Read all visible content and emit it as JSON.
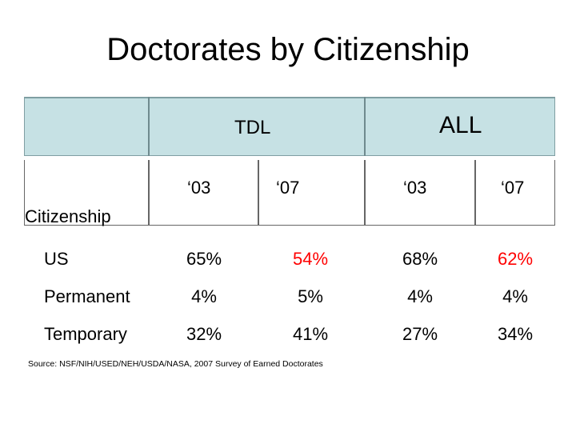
{
  "title": "Doctorates by Citizenship",
  "groups": {
    "tdl": "TDL",
    "all": "ALL"
  },
  "years": {
    "tdl_03": "‘03",
    "tdl_07": "‘07",
    "all_03": "‘03",
    "all_07": "‘07"
  },
  "row_header": "Citizenship",
  "rows": [
    {
      "label": "US",
      "tdl_03": "65%",
      "tdl_07": "54%",
      "all_03": "68%",
      "all_07": "62%"
    },
    {
      "label": "Permanent",
      "tdl_03": "4%",
      "tdl_07": "5%",
      "all_03": "4%",
      "all_07": "4%"
    },
    {
      "label": "Temporary",
      "tdl_03": "32%",
      "tdl_07": "41%",
      "all_03": "27%",
      "all_07": "34%"
    }
  ],
  "highlight_color": "#ff0000",
  "source": "Source: NSF/NIH/USED/NEH/USDA/NASA, 2007 Survey of Earned Doctorates"
}
